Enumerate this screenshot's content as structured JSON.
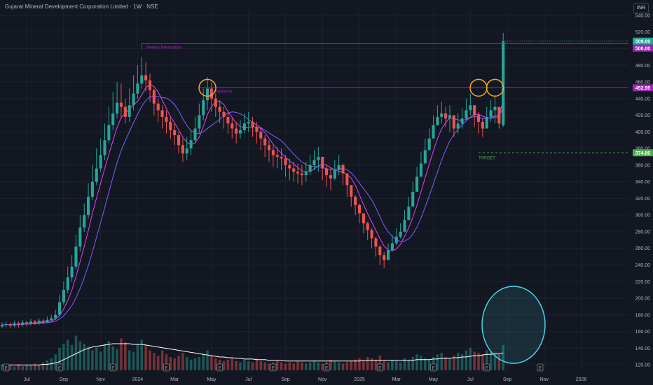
{
  "header": {
    "title": "Gujarat Mineral Development Corporation Limited · 1W · NSE",
    "currency": "INR"
  },
  "colors": {
    "up": "#26a69a",
    "down": "#ef5350",
    "background": "#131722",
    "resistance": "#9c27b0",
    "target": "#4caf50",
    "ma_fast": "#e040fb",
    "ma_slow": "#7b61ff",
    "volume_ma": "#ffffff",
    "highlight_circle": "#f5a623",
    "volume_circle": "#4dd0e1"
  },
  "chart_data": {
    "type": "candlestick",
    "y_ticks": [
      120,
      140,
      160,
      180,
      200,
      220,
      240,
      260,
      280,
      300,
      320,
      340,
      360,
      380,
      400,
      420,
      440,
      460,
      480,
      500,
      520,
      540
    ],
    "ylim": [
      110,
      545
    ],
    "x_ticks": [
      {
        "label": "Jul",
        "i": 6
      },
      {
        "label": "Sep",
        "i": 15
      },
      {
        "label": "Nov",
        "i": 24
      },
      {
        "label": "2024",
        "i": 33
      },
      {
        "label": "Mar",
        "i": 42
      },
      {
        "label": "May",
        "i": 51
      },
      {
        "label": "Jul",
        "i": 60
      },
      {
        "label": "Sep",
        "i": 69
      },
      {
        "label": "Nov",
        "i": 78
      },
      {
        "label": "2025",
        "i": 87
      },
      {
        "label": "Mar",
        "i": 96
      },
      {
        "label": "May",
        "i": 105
      },
      {
        "label": "Jul",
        "i": 114
      },
      {
        "label": "Sep",
        "i": 123
      },
      {
        "label": "Nov",
        "i": 132
      },
      {
        "label": "2026",
        "i": 141
      }
    ],
    "x_slots": 153,
    "closes": [
      168,
      169,
      167,
      170,
      168,
      171,
      169,
      172,
      170,
      173,
      171,
      174,
      176,
      180,
      195,
      210,
      225,
      238,
      262,
      285,
      300,
      322,
      340,
      356,
      372,
      390,
      408,
      422,
      435,
      430,
      418,
      432,
      446,
      458,
      468,
      462,
      450,
      434,
      426,
      418,
      412,
      402,
      396,
      384,
      374,
      380,
      390,
      404,
      420,
      438,
      452,
      440,
      430,
      424,
      418,
      410,
      404,
      398,
      402,
      410,
      412,
      406,
      400,
      392,
      384,
      378,
      372,
      370,
      368,
      360,
      356,
      352,
      350,
      348,
      352,
      360,
      366,
      370,
      356,
      348,
      344,
      354,
      360,
      350,
      336,
      322,
      312,
      302,
      290,
      282,
      272,
      262,
      252,
      246,
      258,
      266,
      274,
      280,
      294,
      310,
      328,
      346,
      362,
      378,
      392,
      408,
      418,
      422,
      416,
      420,
      404,
      410,
      416,
      426,
      432,
      420,
      412,
      404,
      418,
      426,
      430,
      410,
      509
    ],
    "opens": [
      166,
      168,
      169,
      167,
      170,
      168,
      171,
      169,
      172,
      170,
      173,
      171,
      174,
      176,
      180,
      195,
      210,
      225,
      238,
      262,
      285,
      300,
      322,
      340,
      356,
      372,
      390,
      408,
      422,
      435,
      430,
      418,
      432,
      446,
      458,
      468,
      462,
      450,
      434,
      426,
      418,
      412,
      402,
      396,
      384,
      374,
      380,
      390,
      404,
      420,
      438,
      452,
      440,
      430,
      424,
      418,
      410,
      404,
      398,
      402,
      410,
      412,
      406,
      400,
      392,
      384,
      378,
      372,
      370,
      368,
      360,
      356,
      352,
      350,
      348,
      352,
      360,
      366,
      370,
      356,
      348,
      344,
      354,
      360,
      350,
      336,
      322,
      312,
      302,
      290,
      282,
      272,
      262,
      252,
      246,
      258,
      266,
      274,
      280,
      294,
      310,
      328,
      346,
      362,
      378,
      392,
      408,
      418,
      422,
      416,
      420,
      404,
      410,
      416,
      426,
      432,
      420,
      412,
      404,
      418,
      426,
      430,
      408
    ],
    "highs": [
      171,
      172,
      171,
      173,
      172,
      174,
      173,
      175,
      174,
      176,
      175,
      178,
      180,
      186,
      204,
      220,
      238,
      252,
      276,
      300,
      314,
      338,
      360,
      380,
      392,
      410,
      430,
      448,
      460,
      458,
      440,
      452,
      468,
      480,
      490,
      484,
      470,
      452,
      440,
      432,
      426,
      418,
      410,
      400,
      392,
      394,
      402,
      418,
      434,
      452,
      466,
      460,
      446,
      438,
      430,
      424,
      418,
      412,
      414,
      422,
      424,
      418,
      412,
      404,
      396,
      390,
      384,
      382,
      380,
      372,
      368,
      364,
      362,
      360,
      364,
      372,
      378,
      382,
      370,
      360,
      356,
      366,
      372,
      362,
      348,
      334,
      324,
      314,
      300,
      292,
      284,
      274,
      264,
      256,
      266,
      276,
      284,
      290,
      306,
      322,
      340,
      358,
      376,
      392,
      404,
      420,
      432,
      436,
      430,
      432,
      418,
      422,
      428,
      440,
      446,
      432,
      424,
      416,
      430,
      438,
      444,
      424,
      519
    ],
    "lows": [
      164,
      165,
      164,
      165,
      165,
      166,
      166,
      167,
      168,
      168,
      169,
      170,
      172,
      174,
      178,
      192,
      206,
      220,
      234,
      256,
      280,
      296,
      318,
      336,
      352,
      366,
      386,
      402,
      416,
      416,
      410,
      412,
      426,
      440,
      452,
      448,
      436,
      420,
      412,
      404,
      398,
      392,
      384,
      374,
      364,
      366,
      372,
      386,
      398,
      414,
      426,
      424,
      418,
      410,
      404,
      398,
      392,
      386,
      392,
      398,
      400,
      394,
      386,
      378,
      370,
      364,
      358,
      356,
      354,
      346,
      342,
      340,
      338,
      336,
      340,
      348,
      354,
      352,
      342,
      334,
      330,
      342,
      348,
      336,
      322,
      310,
      300,
      290,
      278,
      270,
      260,
      250,
      240,
      236,
      248,
      256,
      264,
      272,
      286,
      302,
      320,
      338,
      354,
      370,
      384,
      398,
      408,
      410,
      406,
      400,
      394,
      398,
      404,
      414,
      420,
      406,
      398,
      394,
      404,
      412,
      410,
      404,
      406
    ],
    "volume_scale_max": 100,
    "volumes": [
      8,
      6,
      7,
      5,
      9,
      6,
      8,
      7,
      10,
      8,
      12,
      15,
      18,
      24,
      34,
      40,
      46,
      38,
      52,
      44,
      40,
      36,
      30,
      34,
      28,
      40,
      44,
      36,
      32,
      48,
      42,
      30,
      28,
      40,
      46,
      38,
      30,
      26,
      22,
      30,
      24,
      20,
      18,
      22,
      26,
      20,
      16,
      18,
      20,
      24,
      30,
      22,
      18,
      16,
      14,
      16,
      18,
      14,
      12,
      16,
      14,
      12,
      18,
      14,
      12,
      10,
      12,
      14,
      12,
      10,
      12,
      10,
      14,
      12,
      10,
      12,
      14,
      12,
      10,
      12,
      16,
      14,
      12,
      10,
      12,
      14,
      16,
      18,
      14,
      20,
      18,
      16,
      22,
      14,
      12,
      16,
      14,
      12,
      18,
      16,
      20,
      24,
      22,
      18,
      16,
      20,
      24,
      26,
      20,
      18,
      22,
      26,
      24,
      30,
      34,
      28,
      26,
      24,
      30,
      28,
      26,
      24,
      38
    ],
    "volume_ma": [
      8,
      8,
      8,
      8,
      8,
      8,
      8,
      8,
      8,
      8,
      9,
      9,
      10,
      11,
      13,
      16,
      19,
      22,
      25,
      28,
      31,
      33,
      35,
      36,
      37,
      38,
      39,
      40,
      40,
      40,
      40,
      40,
      39,
      39,
      39,
      38,
      37,
      36,
      35,
      34,
      33,
      32,
      31,
      30,
      29,
      28,
      27,
      26,
      25,
      24,
      23,
      22,
      21,
      20,
      20,
      19,
      19,
      18,
      18,
      17,
      17,
      17,
      16,
      16,
      16,
      15,
      15,
      15,
      15,
      14,
      14,
      14,
      14,
      14,
      14,
      14,
      14,
      14,
      14,
      14,
      14,
      14,
      14,
      14,
      14,
      14,
      14,
      14,
      15,
      15,
      15,
      15,
      15,
      15,
      15,
      15,
      15,
      15,
      15,
      15,
      15,
      16,
      16,
      16,
      16,
      17,
      17,
      18,
      18,
      18,
      19,
      19,
      20,
      20,
      21,
      22,
      22,
      23,
      24,
      24,
      25,
      25,
      26
    ],
    "resistance_levels": [
      506,
      452.95
    ],
    "target_level": 374.8,
    "price_tags": [
      {
        "value": 509,
        "label": "509.00",
        "color": "#26a69a"
      },
      {
        "value": 506,
        "label": "506.00",
        "color": "#9c27b0"
      },
      {
        "value": 452.95,
        "label": "452.95",
        "color": "#9c27b0"
      },
      {
        "value": 374.8,
        "label": "374.80",
        "color": "#4caf50"
      }
    ],
    "annotations": {
      "weekly_resistance": "Weekly Resistance",
      "resistance": "Resistance",
      "target": "TARGET"
    },
    "event_markers": [
      {
        "i": 1,
        "label": "E"
      },
      {
        "i": 14,
        "label": "E"
      },
      {
        "i": 27,
        "label": "E"
      },
      {
        "i": 40,
        "label": "E"
      },
      {
        "i": 53,
        "label": "E"
      },
      {
        "i": 66,
        "label": "E"
      },
      {
        "i": 79,
        "label": "E"
      },
      {
        "i": 92,
        "label": "E"
      },
      {
        "i": 105,
        "label": "E"
      },
      {
        "i": 118,
        "label": "E"
      },
      {
        "i": 131,
        "label": "E"
      }
    ]
  }
}
